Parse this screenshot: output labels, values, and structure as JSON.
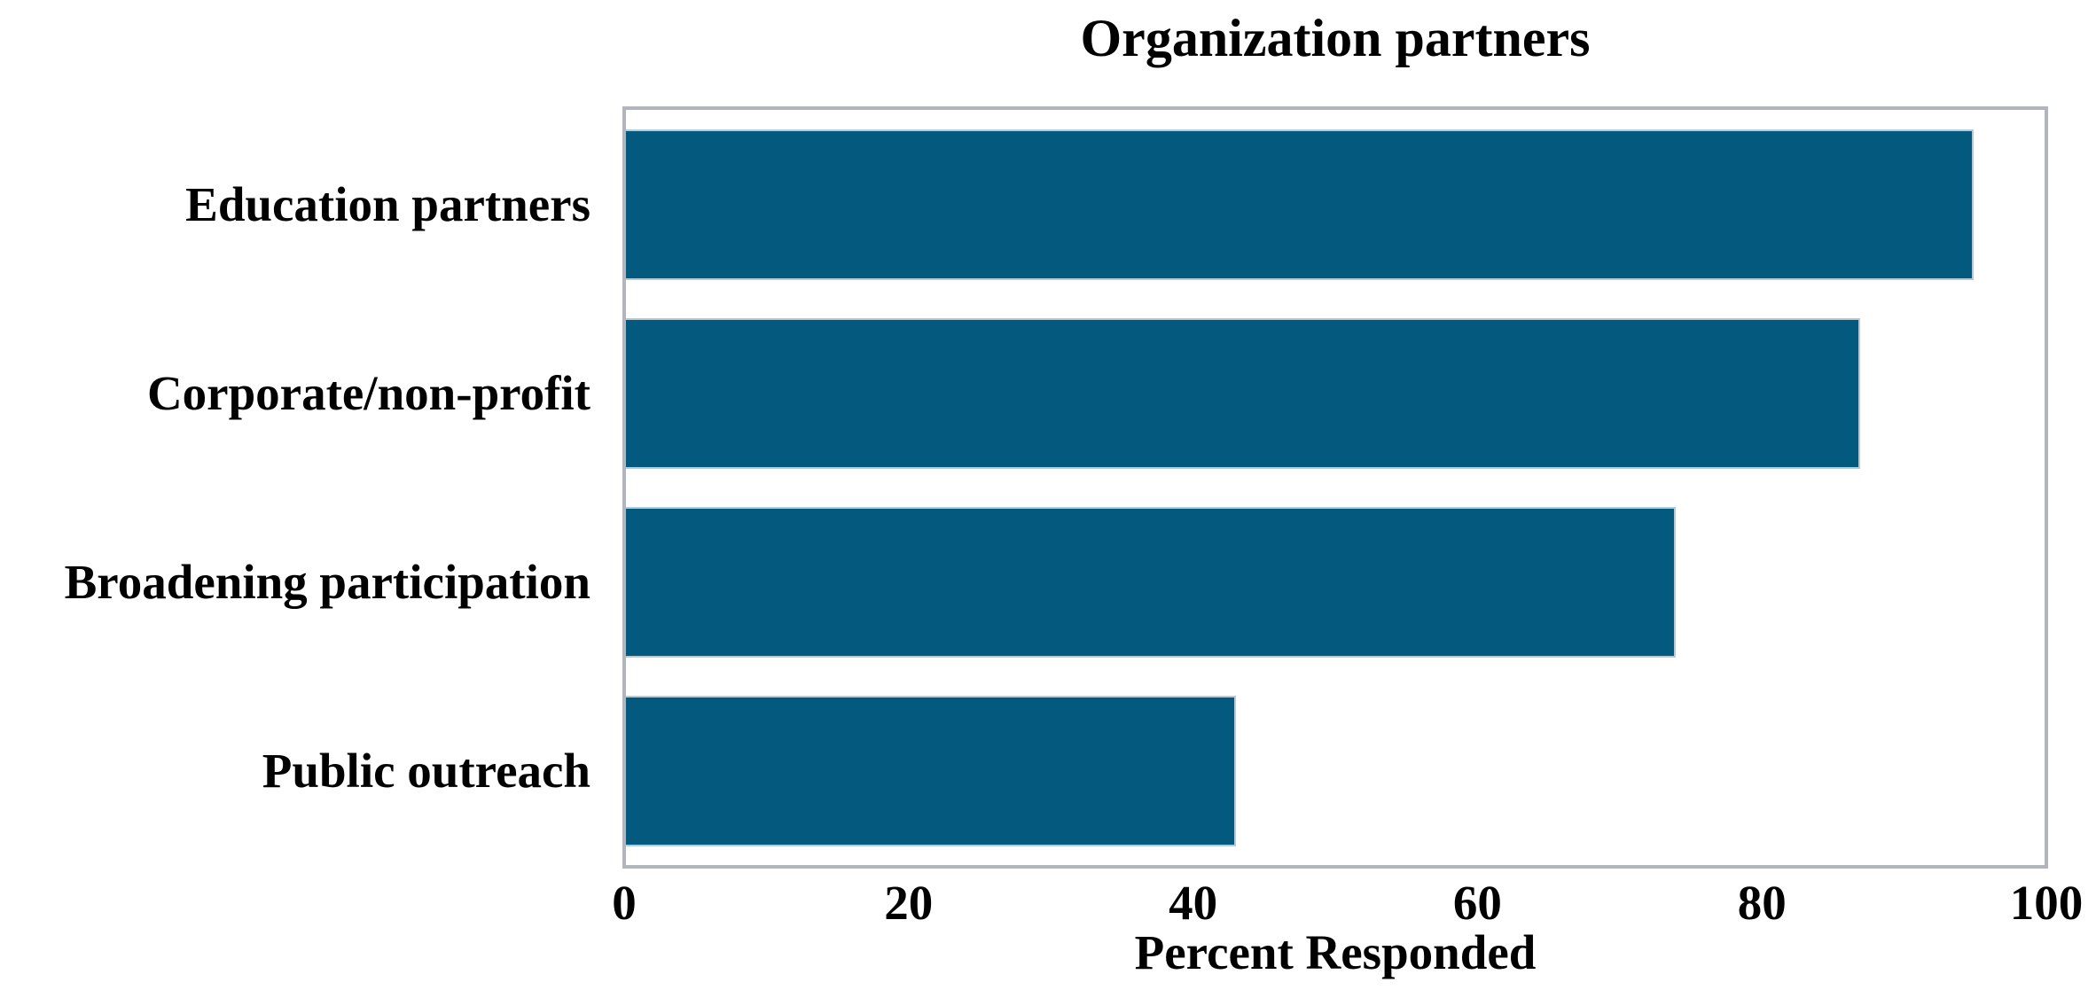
{
  "figure": {
    "title": "Organization partners",
    "x_axis_label": "Percent Responded"
  },
  "chart_data": {
    "type": "bar",
    "orientation": "horizontal",
    "title": "Organization partners",
    "xlabel": "Percent Responded",
    "ylabel": "",
    "categories": [
      "Education partners",
      "Corporate/non-profit",
      "Broadening participation",
      "Public outreach"
    ],
    "values": [
      95,
      87,
      74,
      43
    ],
    "xlim": [
      0,
      100
    ],
    "xticks": [
      0,
      20,
      40,
      60,
      80,
      100
    ],
    "grid": false,
    "legend": false,
    "value_labels_shown": false,
    "colors": {
      "bar_fill": "#04597f",
      "bar_edge": "#b4cbd9",
      "plot_border": "#b2b6bc",
      "background": "#ffffff",
      "text": "#000000"
    }
  }
}
